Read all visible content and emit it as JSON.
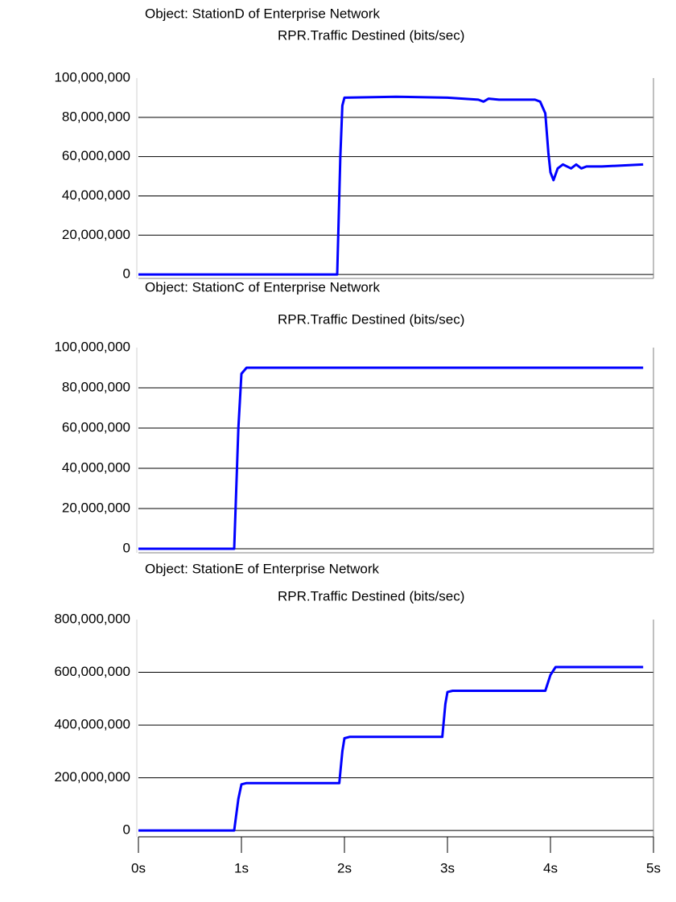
{
  "chart_data": [
    {
      "type": "line",
      "title": "Object: StationD of Enterprise Network",
      "subtitle": "RPR.Traffic Destined (bits/sec)",
      "x": [
        0,
        1.93,
        1.95,
        1.96,
        1.98,
        2.0,
        2.5,
        3.0,
        3.3,
        3.35,
        3.4,
        3.5,
        3.85,
        3.9,
        3.95,
        3.98,
        4.0,
        4.03,
        4.07,
        4.12,
        4.2,
        4.25,
        4.3,
        4.35,
        4.4,
        4.5,
        4.9
      ],
      "values": [
        0,
        0,
        40000000,
        60000000,
        86000000,
        90000000,
        90500000,
        90000000,
        89000000,
        88000000,
        89500000,
        89000000,
        89000000,
        88000000,
        82000000,
        62000000,
        52000000,
        48000000,
        54000000,
        56000000,
        54000000,
        56000000,
        54000000,
        55000000,
        55000000,
        55000000,
        56000000
      ],
      "color": "#0000ff",
      "xlim": [
        0,
        5
      ],
      "ylim": [
        -2000000,
        100000000
      ],
      "yticks": [
        {
          "value": 100000000,
          "label": "100,000,000"
        },
        {
          "value": 80000000,
          "label": "80,000,000"
        },
        {
          "value": 60000000,
          "label": "60,000,000"
        },
        {
          "value": 40000000,
          "label": "40,000,000"
        },
        {
          "value": 20000000,
          "label": "20,000,000"
        },
        0
      ],
      "grid": true
    },
    {
      "type": "line",
      "title": "Object: StationC of Enterprise Network",
      "subtitle": "RPR.Traffic Destined (bits/sec)",
      "x": [
        0,
        0.93,
        0.95,
        0.97,
        1.0,
        1.05,
        2.0,
        3.0,
        4.0,
        4.9
      ],
      "values": [
        0,
        0,
        30000000,
        60000000,
        87000000,
        90000000,
        90000000,
        90000000,
        90000000,
        90000000
      ],
      "color": "#0000ff",
      "xlim": [
        0,
        5
      ],
      "ylim": [
        -2000000,
        100000000
      ],
      "yticks": [
        {
          "value": 100000000,
          "label": "100,000,000"
        },
        {
          "value": 80000000,
          "label": "80,000,000"
        },
        {
          "value": 60000000,
          "label": "60,000,000"
        },
        {
          "value": 40000000,
          "label": "40,000,000"
        },
        {
          "value": 20000000,
          "label": "20,000,000"
        },
        0
      ],
      "grid": true
    },
    {
      "type": "line",
      "title": "Object: StationE of Enterprise Network",
      "subtitle": "RPR.Traffic Destined (bits/sec)",
      "x": [
        0,
        0.93,
        0.97,
        1.0,
        1.05,
        1.95,
        1.98,
        2.0,
        2.05,
        2.95,
        2.98,
        3.0,
        3.05,
        3.95,
        4.0,
        4.05,
        4.9
      ],
      "values": [
        0,
        0,
        120000000,
        175000000,
        180000000,
        180000000,
        300000000,
        350000000,
        355000000,
        355000000,
        480000000,
        525000000,
        530000000,
        530000000,
        590000000,
        620000000,
        620000000
      ],
      "color": "#0000ff",
      "xlim": [
        0,
        5
      ],
      "xticks": [
        {
          "value": 0,
          "label": "0s"
        },
        {
          "value": 1,
          "label": "1s"
        },
        {
          "value": 2,
          "label": "2s"
        },
        {
          "value": 3,
          "label": "3s"
        },
        {
          "value": 4,
          "label": "4s"
        },
        {
          "value": 5,
          "label": "5s"
        }
      ],
      "ylim": [
        -24000000,
        800000000
      ],
      "yticks": [
        {
          "value": 800000000,
          "label": "800,000,000"
        },
        {
          "value": 600000000,
          "label": "600,000,000"
        },
        {
          "value": 400000000,
          "label": "400,000,000"
        },
        {
          "value": 200000000,
          "label": "200,000,000"
        },
        0
      ],
      "grid": true
    }
  ]
}
